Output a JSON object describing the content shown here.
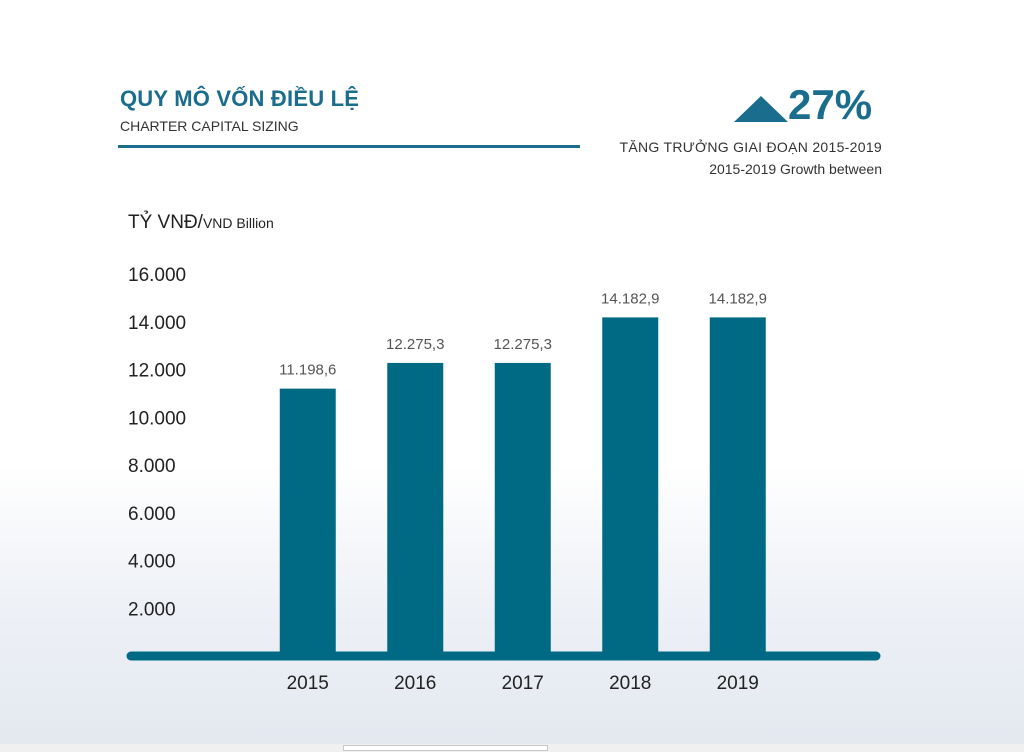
{
  "header": {
    "title_vi": "QUY MÔ VỐN ĐIỀU LỆ",
    "title_en": "CHARTER CAPITAL SIZING"
  },
  "growth": {
    "value": "27%",
    "label_vi": "TĂNG TRƯỞNG GIAI ĐOẠN 2015-2019",
    "label_en": "2015-2019 Growth between"
  },
  "unit": {
    "main": "TỶ VNĐ/",
    "sub": "VND Billion"
  },
  "colors": {
    "accent": "#1a6d8c",
    "bar": "#006a85",
    "text": "#333333"
  },
  "chart_data": {
    "type": "bar",
    "categories": [
      "2015",
      "2016",
      "2017",
      "2018",
      "2019"
    ],
    "values": [
      11198.6,
      12275.3,
      12275.3,
      14182.9,
      14182.9
    ],
    "value_labels": [
      "11.198,6",
      "12.275,3",
      "12.275,3",
      "14.182,9",
      "14.182,9"
    ],
    "yticks": [
      2000,
      4000,
      6000,
      8000,
      10000,
      12000,
      14000,
      16000
    ],
    "ytick_labels": [
      "2.000",
      "4.000",
      "6.000",
      "8.000",
      "10.000",
      "12.000",
      "14.000",
      "16.000"
    ],
    "ylim": [
      0,
      16000
    ],
    "ylabel": "TỶ VNĐ/VND Billion",
    "xlabel": "",
    "title": "QUY MÔ VỐN ĐIỀU LỆ",
    "grid": false,
    "legend": "none"
  }
}
